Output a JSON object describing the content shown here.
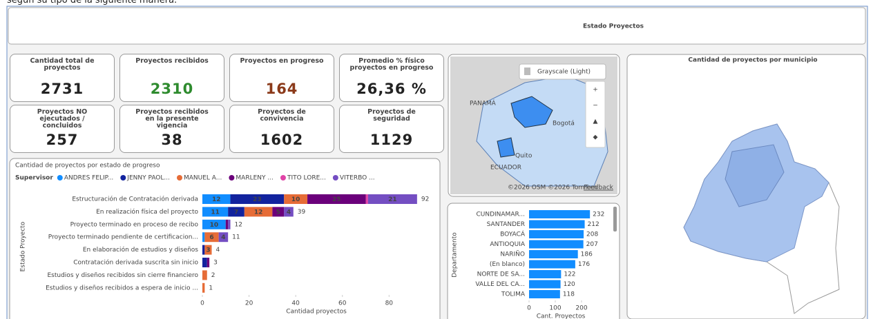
{
  "intro_text": "según su tipo de la siguiente manera.",
  "header": {
    "title": "Estado Proyectos"
  },
  "kpis": [
    {
      "label": "Cantidad total de proyectos",
      "value": "2731",
      "color": "#222222"
    },
    {
      "label": "Proyectos recibidos",
      "value": "2310",
      "color": "#2e8b2e"
    },
    {
      "label": "Proyectos en progreso",
      "value": "164",
      "color": "#8b3a1a"
    },
    {
      "label": "Promedio % físico proyectos en progreso",
      "value": "26,36 %",
      "color": "#222222"
    },
    {
      "label": "Proyectos NO ejecutados / concluidos",
      "value": "257",
      "color": "#222222"
    },
    {
      "label": "Proyectos recibidos en la presente vigencia",
      "value": "38",
      "color": "#222222"
    },
    {
      "label": "Proyectos de convivencia",
      "value": "1602",
      "color": "#222222"
    },
    {
      "label": "Proyectos de seguridad",
      "value": "1129",
      "color": "#222222"
    }
  ],
  "map_panel": {
    "style_button": "Grayscale (Light)",
    "place_labels": [
      "PANAMÁ",
      "Bogotá",
      "Quito",
      "ECUADOR"
    ],
    "attribution": "©2026 OSM ©2026 TomTom",
    "feedback": "Feedback"
  },
  "municipio_map": {
    "title": "Cantidad de proyectos por municipio"
  },
  "chart_data": [
    {
      "type": "bar",
      "orientation": "horizontal",
      "stacked": true,
      "title": "Cantidad de proyectos por estado de progreso",
      "legend_title": "Supervisor",
      "categories": [
        "Estructuración de Contratación derivada",
        "En realización física del proyecto",
        "Proyecto terminado en proceso de recibo",
        "Proyecto terminado pendiente de certificacion...",
        "En elaboración de estudios y diseños",
        "Contratación derivada suscrita sin inicio",
        "Estudios y diseños recibidos sin cierre financiero",
        "Estudios y diseños recibidos a espera de inicio ..."
      ],
      "series": [
        {
          "name": "ANDRES FELIP...",
          "color": "#118dff",
          "values": [
            12,
            11,
            10,
            1,
            0,
            0,
            0,
            0
          ]
        },
        {
          "name": "JENNY PAOL...",
          "color": "#12239e",
          "values": [
            23,
            7,
            0,
            0,
            1,
            2,
            0,
            0
          ]
        },
        {
          "name": "MANUEL A...",
          "color": "#e66c37",
          "values": [
            10,
            12,
            0,
            6,
            3,
            0,
            2,
            1
          ]
        },
        {
          "name": "MARLENY ...",
          "color": "#6b007b",
          "values": [
            25,
            5,
            1,
            0,
            0,
            1,
            0,
            0
          ]
        },
        {
          "name": "TITO LORE...",
          "color": "#e044a7",
          "values": [
            1,
            0,
            0,
            0,
            0,
            0,
            0,
            0
          ]
        },
        {
          "name": "VITERBO ...",
          "color": "#744ec2",
          "values": [
            21,
            4,
            1,
            4,
            0,
            0,
            0,
            0
          ]
        }
      ],
      "totals": [
        92,
        39,
        12,
        11,
        4,
        3,
        2,
        1
      ],
      "xlim": [
        0,
        95
      ],
      "xticks": [
        0,
        20,
        40,
        60,
        80
      ],
      "xlabel": "Cantidad proyectos",
      "ylabel": "Estado Proyecto"
    },
    {
      "type": "bar",
      "orientation": "horizontal",
      "categories": [
        "CUNDINAMAR...",
        "SANTANDER",
        "BOYACÁ",
        "ANTIOQUIA",
        "NARIÑO",
        "(En blanco)",
        "NORTE DE SA...",
        "VALLE DEL CA...",
        "TOLIMA"
      ],
      "values": [
        232,
        212,
        208,
        207,
        186,
        176,
        122,
        120,
        118
      ],
      "color": "#118dff",
      "xlim": [
        0,
        250
      ],
      "xticks": [
        0,
        100,
        200
      ],
      "xlabel": "Cant. Proyectos",
      "ylabel": "Departamento"
    }
  ]
}
